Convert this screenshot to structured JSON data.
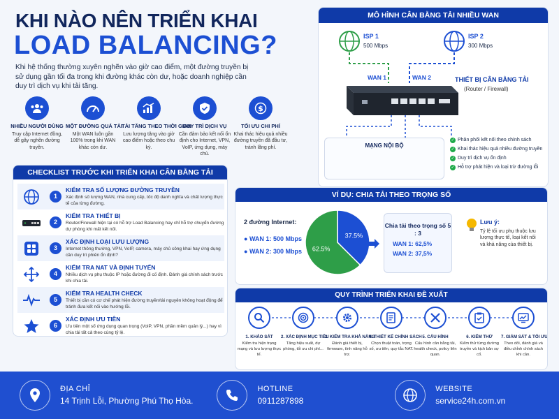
{
  "header": {
    "title_line1": "KHI NÀO NÊN TRIỂN KHAI",
    "title_line2": "LOAD BALANCING?",
    "intro": "Khi hệ thống thường xuyên nghẽn vào giờ cao điểm, một đường truyền bị sử dụng gần tối đa trong khi đường khác còn dư, hoặc doanh nghiệp cần duy trì dịch vụ khi tải tăng."
  },
  "benefits": [
    {
      "icon": "users-icon",
      "title": "NHIỀU NGƯỜI DÙNG",
      "text": "Truy cập Internet đồng, dễ gây nghẽn đường truyền."
    },
    {
      "icon": "speedometer-icon",
      "title": "MỘT ĐƯỜNG QUÁ TẢI",
      "text": "Một WAN luôn gần 100% trong khi WAN khác còn dư."
    },
    {
      "icon": "chart-up-icon",
      "title": "TẢI TĂNG THEO THỜI GIAN",
      "text": "Lưu lượng tăng vào giờ cao điểm hoặc theo chu kỳ."
    },
    {
      "icon": "shield-check-icon",
      "title": "DUY TRÌ DỊCH VỤ",
      "text": "Cần đảm bảo kết nối ổn định cho Internet, VPN, VoIP, ứng dụng, máy chủ."
    },
    {
      "icon": "dollar-icon",
      "title": "TỐI ƯU CHI PHÍ",
      "text": "Khai thác hiệu quả nhiều đường truyền đã đầu tư, tránh lãng phí."
    }
  ],
  "wan_model": {
    "title": "MÔ HÌNH CÂN BẰNG TẢI NHIỀU WAN",
    "isp1": {
      "name": "ISP 1",
      "speed": "500 Mbps"
    },
    "isp2": {
      "name": "ISP 2",
      "speed": "300 Mbps"
    },
    "wan1": "WAN 1",
    "wan2": "WAN 2",
    "device_title": "THIẾT BỊ CÂN BẰNG TẢI",
    "device_sub": "(Router / Firewall)",
    "lan_title": "MẠNG NỘI BỘ",
    "lan_more": "...",
    "features": [
      "Phân phối kết nối theo chính sách",
      "Khai thác hiệu quả nhiều đường truyền",
      "Duy trì dịch vụ ổn định",
      "Hỗ trợ phát hiện và loại trừ đường lỗi"
    ]
  },
  "checklist": {
    "title": "CHECKLIST TRƯỚC KHI TRIỂN KHAI CÂN BẰNG TẢI",
    "items": [
      {
        "num": "1",
        "icon": "globe-icon",
        "title": "KIỂM TRA SỐ LƯỢNG ĐƯỜNG TRUYỀN",
        "desc": "Xác định số lượng WAN, nhà cung cấp, tốc độ danh nghĩa và chất lượng thực tế của từng đường."
      },
      {
        "num": "2",
        "icon": "router-icon",
        "title": "KIỂM TRA THIẾT BỊ",
        "desc": "Router/Firewall hiện tại có hỗ trợ Load Balancing hay chỉ hỗ trợ chuyển đường dự phòng khi mất kết nối."
      },
      {
        "num": "3",
        "icon": "apps-icon",
        "title": "XÁC ĐỊNH LOẠI LƯU LƯỢNG",
        "desc": "Internet thông thường, VPN, VoIP, camera, máy chủ công khai hay ứng dụng cần duy trì phiên ổn định?"
      },
      {
        "num": "4",
        "icon": "arrows-icon",
        "title": "KIỂM TRA NAT VÀ ĐỊNH TUYẾN",
        "desc": "Nhiều dịch vụ phụ thuộc IP hoặc đường đi cố định. Đánh giá chính sách trước khi chia tải."
      },
      {
        "num": "5",
        "icon": "heartbeat-icon",
        "title": "KIỂM TRA HEALTH CHECK",
        "desc": "Thiết bị cần có cơ chế phát hiện đường truyền/tài nguyên không hoạt động để tránh đưa kết nối vào hướng lỗi."
      },
      {
        "num": "6",
        "icon": "star-icon",
        "title": "XÁC ĐỊNH ƯU TIÊN",
        "desc": "Ưu tiên một số ứng dụng quan trọng (VoIP, VPN, phần mềm quản lý...) hay vì chia tải tất cả theo cùng tỷ lệ."
      }
    ]
  },
  "example": {
    "title": "VÍ DỤ: CHIA TẢI THEO TRỌNG SỐ",
    "internet_label": "2 đường Internet:",
    "wan1": "WAN 1: 500 Mbps",
    "wan2": "WAN 2: 300 Mbps",
    "ratio_title": "Chia tải theo trọng số 5 : 3",
    "ratio_wan1": "WAN 1: 62,5%",
    "ratio_wan2": "WAN 2: 37,5%",
    "note_title": "Lưu ý:",
    "note_text": "Tỷ lệ tối ưu phụ thuộc lưu lượng thực tế, loại kết nối và khả năng của thiết bị."
  },
  "chart_data": {
    "type": "pie",
    "categories": [
      "WAN 1",
      "WAN 2"
    ],
    "values": [
      62.5,
      37.5
    ],
    "labels": [
      "62.5%",
      "37.5%"
    ],
    "colors": [
      "#2e9e48",
      "#1c4fd3"
    ]
  },
  "process": {
    "title": "QUY TRÌNH TRIỂN KHAI ĐỀ XUẤT",
    "steps": [
      {
        "icon": "search-icon",
        "title": "1. KHẢO SÁT",
        "desc": "Kiểm tra hiện trạng mạng và lưu lượng thực tế."
      },
      {
        "icon": "target-icon",
        "title": "2. XÁC ĐỊNH MỤC TIÊU",
        "desc": "Tăng hiệu suất, dự phòng, tối ưu chi phí..."
      },
      {
        "icon": "gear-icon",
        "title": "3. KIỂM TRA KHẢ NĂNG",
        "desc": "Đánh giá thiết bị, firmware, tính năng hỗ trợ."
      },
      {
        "icon": "document-icon",
        "title": "4. THIẾT KẾ CHÍNH SÁCH",
        "desc": "Chọn thuật toán, trọng số, ưu tiên, quy tắc NAT."
      },
      {
        "icon": "tools-icon",
        "title": "5. CẤU HÌNH",
        "desc": "Cấu hình cân bằng tải, health check, policy liên quan."
      },
      {
        "icon": "clipboard-icon",
        "title": "6. KIỂM THỬ",
        "desc": "Kiểm thử từng đường truyền và kịch bản sự cố."
      },
      {
        "icon": "monitor-chart-icon",
        "title": "7. GIÁM SÁT & TỐI ƯU",
        "desc": "Theo dõi, đánh giá và điều chỉnh chính sách khi cần."
      }
    ]
  },
  "footer": {
    "address_label": "ĐỊA CHỈ",
    "address_value": "14 Trịnh Lỗi, Phường Phú Thọ Hòa.",
    "hotline_label": "HOTLINE",
    "hotline_value": "0911287898",
    "website_label": "WEBSITE",
    "website_value": "service24h.com.vn"
  },
  "colors": {
    "primary": "#1c4fd3",
    "dark": "#0f3aa8",
    "navy": "#11265c",
    "green": "#2e9e48"
  }
}
